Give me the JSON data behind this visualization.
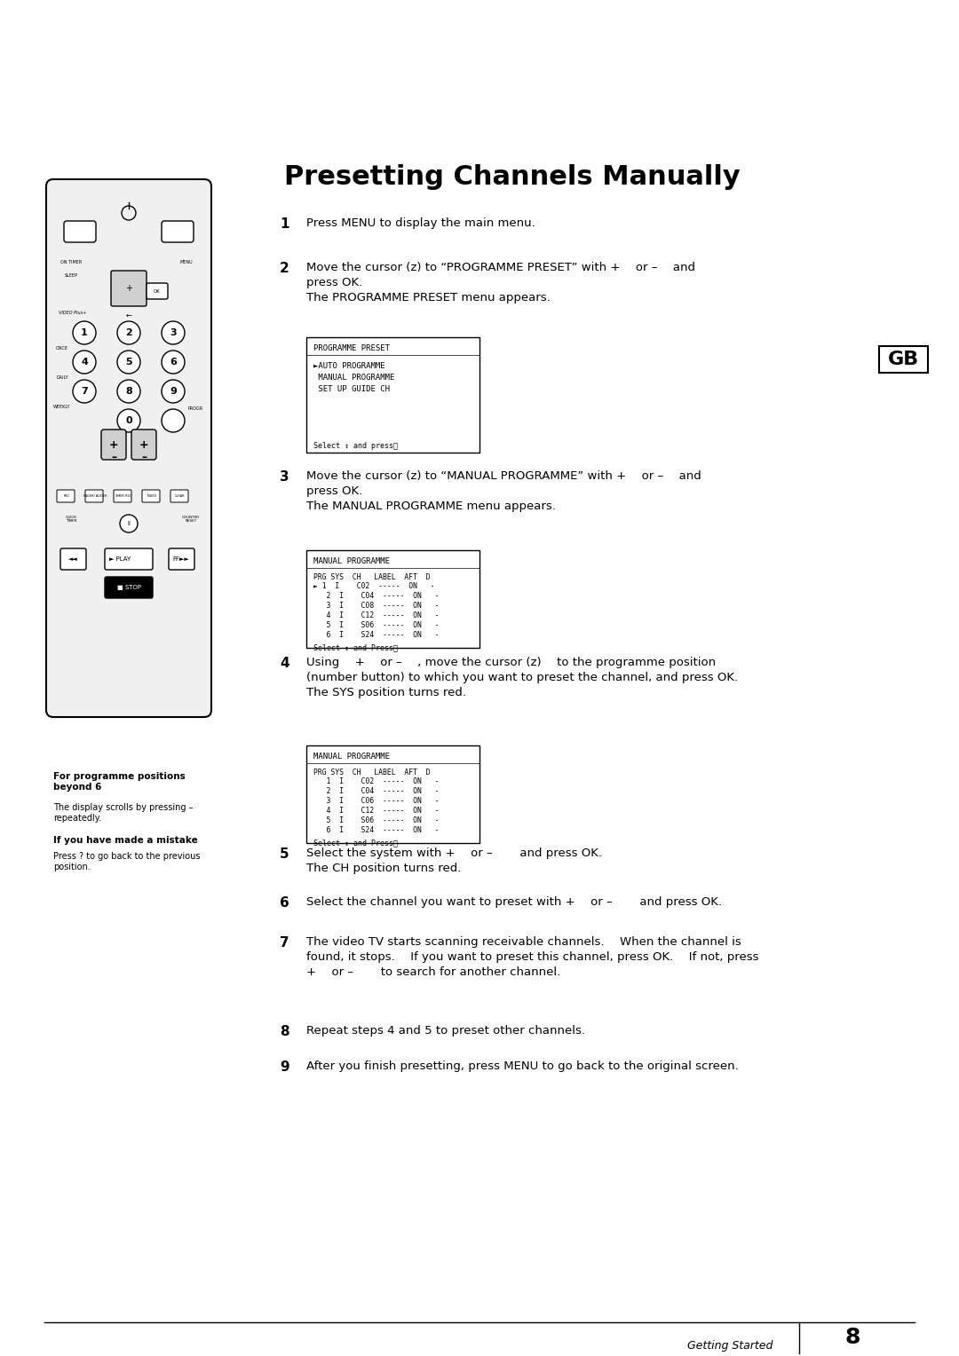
{
  "title": "Presetting Channels Manually",
  "bg_color": "#ffffff",
  "text_color": "#000000",
  "page_width": 10.8,
  "page_height": 15.28,
  "steps": [
    {
      "num": "1",
      "text": "Press MENU to display the main menu."
    },
    {
      "num": "2",
      "text": "Move the cursor (z) to “PROGRAMME PRESET” with +  or –  and\npress OK.\nThe PROGRAMME PRESET menu appears."
    },
    {
      "num": "3",
      "text": "Move the cursor (z) to “MANUAL PROGRAMME” with +  or –  and\npress OK.\nThe MANUAL PROGRAMME menu appears."
    },
    {
      "num": "4",
      "text": "Using  +  or –  , move the cursor (z)  to the programme position\n(number button) to which you want to preset the channel, and press OK.\nThe SYS position turns red."
    },
    {
      "num": "5",
      "text": "Select the system with +  or –   and press OK.\nThe CH position turns red."
    },
    {
      "num": "6",
      "text": "Select the channel you want to preset with +  or –   and press OK."
    },
    {
      "num": "7",
      "text": "The video TV starts scanning receivable channels.  When the channel is\nfound, it stops.  If you want to preset this channel, press OK.  If not, press\n+  or –   to search for another channel."
    },
    {
      "num": "8",
      "text": "Repeat steps 4 and 5 to preset other channels."
    },
    {
      "num": "9",
      "text": "After you finish presetting, press MENU to go back to the original screen."
    }
  ],
  "programme_preset_menu": {
    "title": "PROGRAMME PRESET",
    "items": [
      "►AUTO PROGRAMME",
      " MANUAL PROGRAMME",
      " SET UP GUIDE CH"
    ],
    "footer": "Select ↕ and pressⓞ"
  },
  "manual_programme_menu1": {
    "title": "MANUAL PROGRAMME",
    "header": "PRG SYS  CH   LABEL  AFT  D",
    "rows": [
      "► 1  I    C02  -----  ON   -",
      "   2  I    C04  -----  ON   -",
      "   3  I    C08  -----  ON   -",
      "   4  I    C12  -----  ON   -",
      "   5  I    S06  -----  ON   -",
      "   6  I    S24  -----  ON   -"
    ],
    "footer": "Select ↕ and Pressⓞ"
  },
  "manual_programme_menu2": {
    "title": "MANUAL PROGRAMME",
    "header": "PRG SYS  CH   LABEL  AFT  D",
    "rows": [
      "   1  I    C02  -----  ON   -",
      "   2  I    C04  -----  ON   -",
      "   3  I    C06  -----  ON   -",
      "   4  I    C12  -----  ON   -",
      "   5  I    S06  -----  ON   -",
      "   6  I    S24  -----  ON   -"
    ],
    "footer": "Select ↕ and Pressⓞ"
  },
  "sidebar_bold": "For programme positions\nbeyond 6",
  "sidebar_normal": "The display scrolls by pressing –\nrepeatedly.",
  "sidebar_bold2": "If you have made a mistake",
  "sidebar_normal2": "Press ? to go back to the previous\nposition.",
  "footer_text": "Getting Started",
  "footer_page": "8",
  "gb_label": "GB"
}
